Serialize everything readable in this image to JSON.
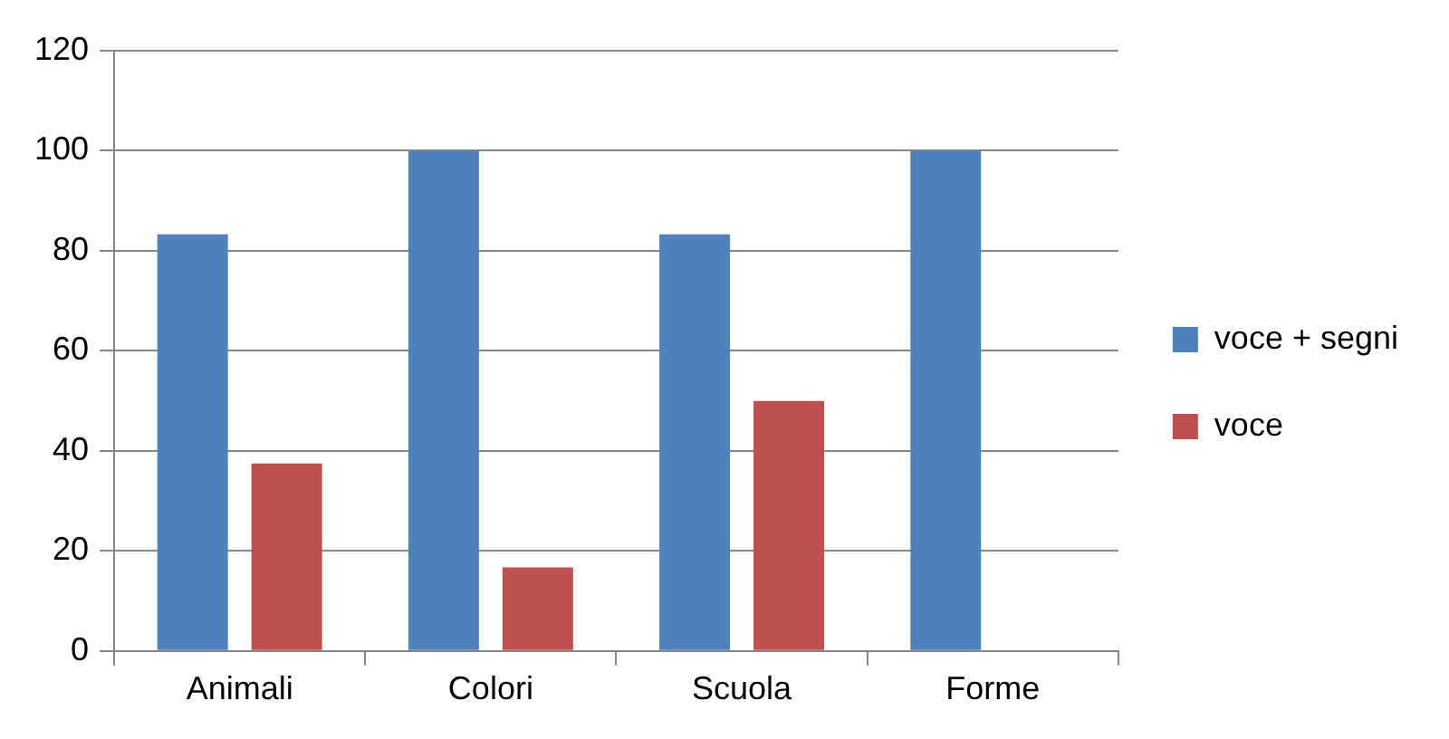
{
  "chart_data": {
    "type": "bar",
    "categories": [
      "Animali",
      "Colori",
      "Scuola",
      "Forme"
    ],
    "series": [
      {
        "name": "voce + segni",
        "color": "#4f81bd",
        "values": [
          83.3,
          100,
          83.3,
          100
        ]
      },
      {
        "name": "voce",
        "color": "#c0504d",
        "values": [
          37.5,
          16.7,
          50,
          0
        ]
      }
    ],
    "ylim": [
      0,
      120
    ],
    "yticks": [
      0,
      20,
      40,
      60,
      80,
      100,
      120
    ],
    "grid": "y",
    "legend": "right"
  }
}
